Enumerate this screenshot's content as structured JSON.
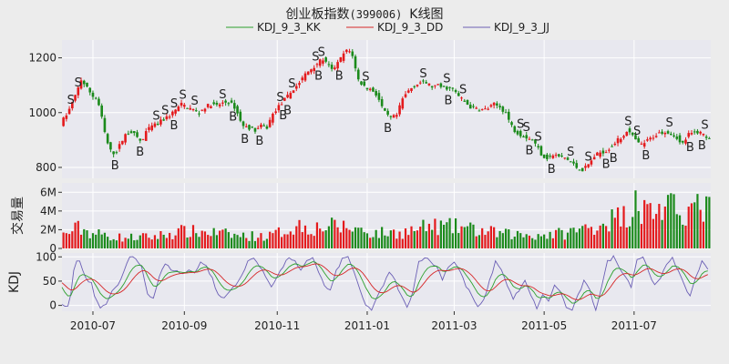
{
  "chart_data": {
    "type": "candlestick",
    "title": "创业板指数",
    "title_code": "(399006)",
    "title_suffix": "K线图",
    "legend": [
      {
        "name": "KDJ_9_3_KK",
        "color": "#2ca02c"
      },
      {
        "name": "KDJ_9_3_DD",
        "color": "#d62728"
      },
      {
        "name": "KDJ_9_3_JJ",
        "color": "#6b5fb5"
      }
    ],
    "legend_position": "top-center",
    "grid": true,
    "colors": {
      "up": "#e41a1c",
      "down": "#1b8a1b",
      "buy_marker": "#008000",
      "sell_marker": "#e41a1c",
      "panel_bg": "#e8e8ef",
      "page_bg": "#ececec"
    },
    "x_ticks": [
      "2010-07",
      "2010-09",
      "2010-11",
      "2011-01",
      "2011-03",
      "2011-05",
      "2011-07"
    ],
    "x_tick_day_index": [
      21,
      83,
      146,
      207,
      266,
      327,
      388
    ],
    "price_panel": {
      "ylim": [
        760,
        1265
      ],
      "yticks": [
        800,
        1000,
        1200
      ],
      "path": [
        [
          0,
          960
        ],
        [
          5,
          1000
        ],
        [
          10,
          1060
        ],
        [
          14,
          1120
        ],
        [
          18,
          1090
        ],
        [
          22,
          1060
        ],
        [
          25,
          1050
        ],
        [
          28,
          980
        ],
        [
          31,
          900
        ],
        [
          34,
          860
        ],
        [
          37,
          850
        ],
        [
          40,
          880
        ],
        [
          44,
          920
        ],
        [
          48,
          930
        ],
        [
          52,
          910
        ],
        [
          55,
          890
        ],
        [
          58,
          930
        ],
        [
          62,
          950
        ],
        [
          66,
          960
        ],
        [
          70,
          975
        ],
        [
          74,
          990
        ],
        [
          78,
          1010
        ],
        [
          82,
          1030
        ],
        [
          86,
          1020
        ],
        [
          90,
          1010
        ],
        [
          94,
          1000
        ],
        [
          98,
          1020
        ],
        [
          102,
          1030
        ],
        [
          106,
          1025
        ],
        [
          110,
          1035
        ],
        [
          114,
          1040
        ],
        [
          118,
          1020
        ],
        [
          121,
          985
        ],
        [
          124,
          950
        ],
        [
          128,
          945
        ],
        [
          132,
          935
        ],
        [
          136,
          950
        ],
        [
          140,
          945
        ],
        [
          143,
          985
        ],
        [
          146,
          1010
        ],
        [
          150,
          1035
        ],
        [
          154,
          1060
        ],
        [
          158,
          1085
        ],
        [
          162,
          1110
        ],
        [
          166,
          1140
        ],
        [
          170,
          1160
        ],
        [
          174,
          1180
        ],
        [
          178,
          1195
        ],
        [
          181,
          1175
        ],
        [
          184,
          1155
        ],
        [
          188,
          1180
        ],
        [
          192,
          1215
        ],
        [
          195,
          1230
        ],
        [
          198,
          1210
        ],
        [
          200,
          1160
        ],
        [
          202,
          1120
        ],
        [
          205,
          1100
        ],
        [
          208,
          1090
        ],
        [
          212,
          1080
        ],
        [
          215,
          1060
        ],
        [
          218,
          1020
        ],
        [
          221,
          990
        ],
        [
          224,
          980
        ],
        [
          228,
          990
        ],
        [
          232,
          1050
        ],
        [
          236,
          1080
        ],
        [
          240,
          1100
        ],
        [
          244,
          1110
        ],
        [
          248,
          1108
        ],
        [
          252,
          1095
        ],
        [
          256,
          1098
        ],
        [
          260,
          1090
        ],
        [
          263,
          1090
        ],
        [
          266,
          1085
        ],
        [
          270,
          1060
        ],
        [
          274,
          1040
        ],
        [
          278,
          1020
        ],
        [
          282,
          1015
        ],
        [
          286,
          1010
        ],
        [
          290,
          1015
        ],
        [
          294,
          1030
        ],
        [
          298,
          1020
        ],
        [
          302,
          1000
        ],
        [
          305,
          960
        ],
        [
          308,
          935
        ],
        [
          312,
          920
        ],
        [
          316,
          910
        ],
        [
          320,
          900
        ],
        [
          324,
          870
        ],
        [
          327,
          840
        ],
        [
          330,
          835
        ],
        [
          334,
          845
        ],
        [
          338,
          840
        ],
        [
          342,
          835
        ],
        [
          346,
          820
        ],
        [
          350,
          800
        ],
        [
          354,
          790
        ],
        [
          358,
          810
        ],
        [
          362,
          840
        ],
        [
          366,
          855
        ],
        [
          370,
          860
        ],
        [
          374,
          880
        ],
        [
          378,
          900
        ],
        [
          381,
          910
        ],
        [
          384,
          935
        ],
        [
          387,
          920
        ],
        [
          390,
          900
        ],
        [
          393,
          880
        ],
        [
          396,
          890
        ],
        [
          400,
          905
        ],
        [
          404,
          920
        ],
        [
          408,
          930
        ],
        [
          412,
          930
        ],
        [
          415,
          920
        ],
        [
          418,
          910
        ],
        [
          421,
          880
        ],
        [
          423,
          895
        ],
        [
          426,
          920
        ],
        [
          429,
          925
        ],
        [
          432,
          930
        ],
        [
          435,
          925
        ],
        [
          438,
          912
        ]
      ],
      "buy_markers_day": [
        36,
        53,
        76,
        116,
        124,
        134,
        150,
        153,
        174,
        188,
        221,
        262,
        317,
        332,
        369,
        374,
        396,
        426,
        434
      ],
      "sell_markers_day": [
        6,
        11,
        64,
        70,
        76,
        82,
        90,
        109,
        148,
        156,
        172,
        176,
        206,
        245,
        261,
        272,
        311,
        315,
        323,
        345,
        357,
        384,
        390,
        412,
        436
      ],
      "buy_label": "B",
      "sell_label": "S"
    },
    "volume_panel": {
      "ylabel": "交易量",
      "ylim": [
        0,
        7000000
      ],
      "yticks": [
        0,
        2000000,
        4000000,
        6000000
      ],
      "ytick_labels": [
        "0",
        "2M",
        "4M",
        "6M"
      ],
      "profile": [
        [
          0,
          1500000
        ],
        [
          10,
          2300000
        ],
        [
          20,
          1700000
        ],
        [
          40,
          1200000
        ],
        [
          60,
          1300000
        ],
        [
          80,
          1900000
        ],
        [
          100,
          1800000
        ],
        [
          120,
          1400000
        ],
        [
          140,
          1400000
        ],
        [
          150,
          2000000
        ],
        [
          160,
          2600000
        ],
        [
          170,
          2300000
        ],
        [
          180,
          2500000
        ],
        [
          190,
          2400000
        ],
        [
          200,
          2200000
        ],
        [
          210,
          1700000
        ],
        [
          230,
          1800000
        ],
        [
          250,
          2500000
        ],
        [
          260,
          2400000
        ],
        [
          270,
          2400000
        ],
        [
          280,
          2000000
        ],
        [
          300,
          1600000
        ],
        [
          320,
          1500000
        ],
        [
          340,
          1700000
        ],
        [
          350,
          2100000
        ],
        [
          360,
          2500000
        ],
        [
          370,
          3200000
        ],
        [
          380,
          3700000
        ],
        [
          390,
          4200000
        ],
        [
          400,
          4400000
        ],
        [
          420,
          4300000
        ],
        [
          438,
          4600000
        ]
      ],
      "spikes_day": [
        [
          388,
          6200000
        ],
        [
          412,
          5900000
        ],
        [
          438,
          5500000
        ]
      ]
    },
    "kdj_panel": {
      "ylabel": "KDJ",
      "ylim": [
        -12,
        108
      ],
      "yticks": [
        0,
        50,
        100
      ],
      "jj_path": [
        [
          0,
          0
        ],
        [
          5,
          -5
        ],
        [
          9,
          95
        ],
        [
          12,
          90
        ],
        [
          16,
          55
        ],
        [
          20,
          45
        ],
        [
          23,
          10
        ],
        [
          26,
          -5
        ],
        [
          30,
          5
        ],
        [
          34,
          30
        ],
        [
          38,
          40
        ],
        [
          42,
          70
        ],
        [
          46,
          100
        ],
        [
          50,
          95
        ],
        [
          54,
          80
        ],
        [
          58,
          25
        ],
        [
          62,
          15
        ],
        [
          66,
          60
        ],
        [
          70,
          85
        ],
        [
          74,
          75
        ],
        [
          78,
          70
        ],
        [
          82,
          65
        ],
        [
          86,
          72
        ],
        [
          90,
          68
        ],
        [
          94,
          90
        ],
        [
          98,
          80
        ],
        [
          102,
          55
        ],
        [
          106,
          20
        ],
        [
          110,
          15
        ],
        [
          114,
          30
        ],
        [
          118,
          45
        ],
        [
          122,
          60
        ],
        [
          126,
          90
        ],
        [
          130,
          100
        ],
        [
          134,
          80
        ],
        [
          138,
          60
        ],
        [
          142,
          40
        ],
        [
          146,
          60
        ],
        [
          150,
          80
        ],
        [
          154,
          100
        ],
        [
          158,
          90
        ],
        [
          162,
          70
        ],
        [
          166,
          90
        ],
        [
          170,
          100
        ],
        [
          174,
          70
        ],
        [
          178,
          40
        ],
        [
          182,
          30
        ],
        [
          186,
          70
        ],
        [
          190,
          95
        ],
        [
          194,
          100
        ],
        [
          198,
          70
        ],
        [
          202,
          30
        ],
        [
          206,
          0
        ],
        [
          210,
          -10
        ],
        [
          214,
          20
        ],
        [
          218,
          40
        ],
        [
          222,
          70
        ],
        [
          226,
          50
        ],
        [
          230,
          20
        ],
        [
          234,
          -5
        ],
        [
          238,
          30
        ],
        [
          242,
          90
        ],
        [
          246,
          100
        ],
        [
          250,
          90
        ],
        [
          254,
          80
        ],
        [
          258,
          55
        ],
        [
          262,
          80
        ],
        [
          266,
          90
        ],
        [
          270,
          70
        ],
        [
          274,
          40
        ],
        [
          278,
          20
        ],
        [
          282,
          -5
        ],
        [
          286,
          10
        ],
        [
          290,
          50
        ],
        [
          294,
          90
        ],
        [
          298,
          75
        ],
        [
          302,
          40
        ],
        [
          306,
          15
        ],
        [
          310,
          30
        ],
        [
          314,
          50
        ],
        [
          318,
          20
        ],
        [
          322,
          -5
        ],
        [
          326,
          20
        ],
        [
          330,
          10
        ],
        [
          334,
          40
        ],
        [
          338,
          30
        ],
        [
          342,
          -5
        ],
        [
          346,
          -10
        ],
        [
          350,
          20
        ],
        [
          354,
          50
        ],
        [
          358,
          30
        ],
        [
          362,
          -10
        ],
        [
          366,
          40
        ],
        [
          370,
          90
        ],
        [
          374,
          100
        ],
        [
          378,
          80
        ],
        [
          382,
          60
        ],
        [
          386,
          40
        ],
        [
          390,
          95
        ],
        [
          394,
          100
        ],
        [
          398,
          70
        ],
        [
          402,
          40
        ],
        [
          406,
          55
        ],
        [
          410,
          85
        ],
        [
          414,
          100
        ],
        [
          418,
          70
        ],
        [
          422,
          40
        ],
        [
          426,
          20
        ],
        [
          430,
          60
        ],
        [
          434,
          90
        ],
        [
          438,
          75
        ]
      ],
      "smoothing_kk": 0.33,
      "smoothing_dd": 0.33
    },
    "x_range_days": [
      0,
      440
    ]
  }
}
